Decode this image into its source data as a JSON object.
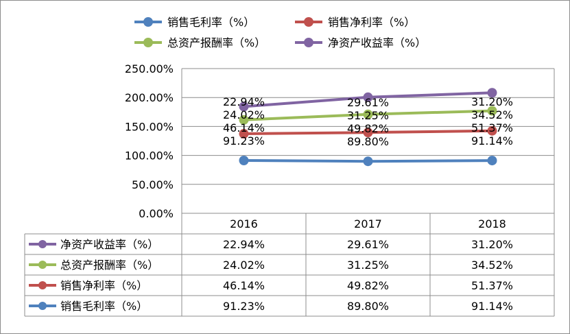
{
  "chart_data": {
    "type": "line",
    "categories": [
      "2016",
      "2017",
      "2018"
    ],
    "ylim": [
      0,
      250
    ],
    "y_ticks": [
      "250.00%",
      "200.00%",
      "150.00%",
      "100.00%",
      "50.00%",
      "0.00%"
    ],
    "grid": true,
    "legend_position": "top",
    "series": [
      {
        "name": "净资产收益率（%）",
        "color": "#8064a2",
        "values": [
          22.94,
          29.61,
          31.2
        ],
        "labels": [
          "22.94%",
          "29.61%",
          "31.20%"
        ]
      },
      {
        "name": "总资产报酬率（%）",
        "color": "#9bbb59",
        "values": [
          24.02,
          31.25,
          34.52
        ],
        "labels": [
          "24.02%",
          "31.25%",
          "34.52%"
        ]
      },
      {
        "name": "销售净利率（%）",
        "color": "#c0504d",
        "values": [
          46.14,
          49.82,
          51.37
        ],
        "labels": [
          "46.14%",
          "49.82%",
          "51.37%"
        ]
      },
      {
        "name": "销售毛利率（%）",
        "color": "#4f81bd",
        "values": [
          91.23,
          89.8,
          91.14
        ],
        "labels": [
          "91.23%",
          "89.80%",
          "91.14%"
        ]
      }
    ],
    "stacked": true,
    "legend": [
      {
        "name": "销售毛利率（%）",
        "color": "#4f81bd"
      },
      {
        "name": "销售净利率（%）",
        "color": "#c0504d"
      },
      {
        "name": "总资产报酬率（%）",
        "color": "#9bbb59"
      },
      {
        "name": "净资产收益率（%）",
        "color": "#8064a2"
      }
    ]
  }
}
